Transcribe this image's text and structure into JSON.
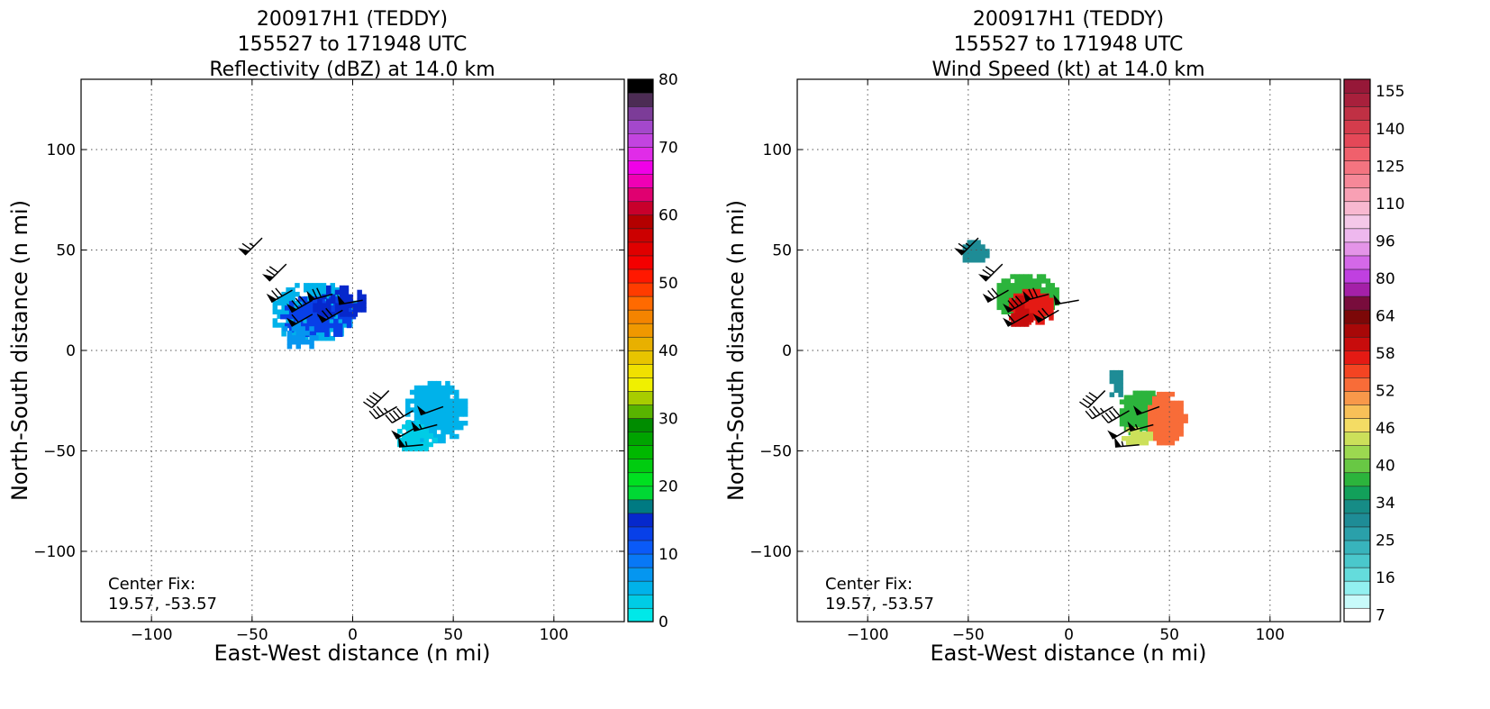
{
  "chart_data": [
    {
      "type": "heatmap",
      "title_lines": [
        "200917H1 (TEDDY)",
        "155527 to 171948 UTC",
        "Reflectivity (dBZ) at 14.0 km"
      ],
      "xlabel": "East-West distance (n mi)",
      "ylabel": "North-South distance (n mi)",
      "xlim": [
        -135,
        135
      ],
      "ylim": [
        -135,
        135
      ],
      "x_ticks": [
        -100,
        -50,
        0,
        50,
        100
      ],
      "y_ticks": [
        -100,
        -50,
        0,
        50,
        100
      ],
      "x_tick_labels": [
        "−100",
        "−50",
        "0",
        "50",
        "100"
      ],
      "y_tick_labels": [
        "−100",
        "−50",
        "0",
        "50",
        "100"
      ],
      "grid": true,
      "annotation_lines": [
        "Center Fix:",
        "19.57, -53.57"
      ],
      "colorbar": {
        "label_values": [
          0,
          10,
          20,
          30,
          40,
          50,
          60,
          70,
          80
        ],
        "labels": [
          "0",
          "10",
          "20",
          "30",
          "40",
          "50",
          "60",
          "70",
          "80"
        ],
        "colors": [
          "#00e8e8",
          "#00cce6",
          "#00b2ea",
          "#0596f0",
          "#0878f6",
          "#0a5af8",
          "#0840e8",
          "#0628cc",
          "#007a82",
          "#00d834",
          "#00e020",
          "#00cc10",
          "#00b800",
          "#00a400",
          "#008c00",
          "#58b400",
          "#a8cc00",
          "#f0f000",
          "#f0e000",
          "#e8c400",
          "#e8b000",
          "#f09800",
          "#f48400",
          "#ff6a00",
          "#ff3c00",
          "#ff1800",
          "#f40000",
          "#e00000",
          "#cc0000",
          "#b40000",
          "#c8002c",
          "#e00070",
          "#f000b4",
          "#f000e8",
          "#e02ce8",
          "#c244e0",
          "#a448cc",
          "#7c3c98",
          "#4c2c54",
          "#000000"
        ]
      },
      "fields": [
        {
          "level": 2,
          "x": -20,
          "y": 20,
          "rx": 22,
          "ry": 15,
          "density": 0.7
        },
        {
          "level": 2,
          "x": 40,
          "y": -30,
          "rx": 16,
          "ry": 16,
          "density": 0.8
        },
        {
          "level": 6,
          "x": -18,
          "y": 18,
          "rx": 18,
          "ry": 11,
          "density": 0.75
        },
        {
          "level": 7,
          "x": -8,
          "y": 25,
          "rx": 14,
          "ry": 8,
          "density": 0.6
        },
        {
          "level": 3,
          "x": -28,
          "y": 8,
          "rx": 9,
          "ry": 7,
          "density": 0.6
        },
        {
          "level": 1,
          "x": 30,
          "y": -42,
          "rx": 10,
          "ry": 8,
          "density": 0.6
        }
      ],
      "barbs": [
        {
          "x": -45,
          "y": 56,
          "dir": 225,
          "speed": 65
        },
        {
          "x": -33,
          "y": 43,
          "dir": 225,
          "speed": 70
        },
        {
          "x": -30,
          "y": 30,
          "dir": 240,
          "speed": 70
        },
        {
          "x": -20,
          "y": 25,
          "dir": 240,
          "speed": 80
        },
        {
          "x": -10,
          "y": 28,
          "dir": 255,
          "speed": 70
        },
        {
          "x": -20,
          "y": 18,
          "dir": 240,
          "speed": 60
        },
        {
          "x": -5,
          "y": 20,
          "dir": 240,
          "speed": 70
        },
        {
          "x": 5,
          "y": 25,
          "dir": 260,
          "speed": 50
        },
        {
          "x": 18,
          "y": -20,
          "dir": 225,
          "speed": 40
        },
        {
          "x": 22,
          "y": -28,
          "dir": 240,
          "speed": 35
        },
        {
          "x": 30,
          "y": -30,
          "dir": 240,
          "speed": 40
        },
        {
          "x": 32,
          "y": -38,
          "dir": 240,
          "speed": 50
        },
        {
          "x": 45,
          "y": -28,
          "dir": 250,
          "speed": 50
        },
        {
          "x": 42,
          "y": -37,
          "dir": 255,
          "speed": 55
        },
        {
          "x": 35,
          "y": -47,
          "dir": 265,
          "speed": 55
        }
      ]
    },
    {
      "type": "heatmap",
      "title_lines": [
        "200917H1 (TEDDY)",
        "155527 to 171948 UTC",
        "Wind Speed (kt) at 14.0 km"
      ],
      "xlabel": "East-West distance (n mi)",
      "ylabel": "North-South distance (n mi)",
      "xlim": [
        -135,
        135
      ],
      "ylim": [
        -135,
        135
      ],
      "x_ticks": [
        -100,
        -50,
        0,
        50,
        100
      ],
      "y_ticks": [
        -100,
        -50,
        0,
        50,
        100
      ],
      "x_tick_labels": [
        "−100",
        "−50",
        "0",
        "50",
        "100"
      ],
      "y_tick_labels": [
        "−100",
        "−50",
        "0",
        "50",
        "100"
      ],
      "grid": true,
      "annotation_lines": [
        "Center Fix:",
        "19.57, -53.57"
      ],
      "colorbar": {
        "label_positions": [
          0,
          2,
          4,
          6,
          8,
          10,
          12,
          14,
          16,
          18,
          20,
          22,
          24,
          26,
          28
        ],
        "labels": [
          "7",
          "16",
          "25",
          "34",
          "40",
          "46",
          "52",
          "58",
          "64",
          "80",
          "96",
          "110",
          "125",
          "140",
          "155"
        ],
        "colors": [
          "#ffffff",
          "#c8fafa",
          "#92f0f0",
          "#64dcdc",
          "#4ac8cc",
          "#38b4bc",
          "#2aa0aa",
          "#1e8c96",
          "#168c86",
          "#12a05a",
          "#2cb43c",
          "#68c844",
          "#9cd850",
          "#cce05a",
          "#f4dc64",
          "#f8c058",
          "#f8984a",
          "#f86c38",
          "#f44422",
          "#e41a14",
          "#c80c0c",
          "#a80808",
          "#7c0808",
          "#780c3c",
          "#a420a8",
          "#c040e0",
          "#d468e8",
          "#e494e8",
          "#eeb8ee",
          "#f4c8e8",
          "#f8b8d0",
          "#f8a0b4",
          "#f68898",
          "#f47480",
          "#f0606c",
          "#e44858",
          "#d43c4c",
          "#c03044",
          "#a8203c",
          "#961838"
        ]
      },
      "fields": [
        {
          "level": 10,
          "x": -22,
          "y": 28,
          "rx": 16,
          "ry": 12,
          "density": 0.8
        },
        {
          "level": 19,
          "x": -20,
          "y": 22,
          "rx": 12,
          "ry": 9,
          "density": 0.8
        },
        {
          "level": 20,
          "x": -25,
          "y": 20,
          "rx": 6,
          "ry": 8,
          "density": 0.7
        },
        {
          "level": 7,
          "x": -48,
          "y": 50,
          "rx": 7,
          "ry": 6,
          "density": 0.9
        },
        {
          "level": 10,
          "x": 35,
          "y": -30,
          "rx": 12,
          "ry": 12,
          "density": 0.8
        },
        {
          "level": 17,
          "x": 47,
          "y": -33,
          "rx": 10,
          "ry": 14,
          "density": 0.9
        },
        {
          "level": 7,
          "x": 22,
          "y": -15,
          "rx": 4,
          "ry": 8,
          "density": 0.7
        },
        {
          "level": 13,
          "x": 32,
          "y": -42,
          "rx": 8,
          "ry": 5,
          "density": 0.7
        }
      ],
      "barbs": [
        {
          "x": -45,
          "y": 56,
          "dir": 225,
          "speed": 65
        },
        {
          "x": -33,
          "y": 43,
          "dir": 225,
          "speed": 70
        },
        {
          "x": -30,
          "y": 30,
          "dir": 240,
          "speed": 70
        },
        {
          "x": -20,
          "y": 25,
          "dir": 240,
          "speed": 80
        },
        {
          "x": -10,
          "y": 28,
          "dir": 255,
          "speed": 70
        },
        {
          "x": -20,
          "y": 18,
          "dir": 240,
          "speed": 60
        },
        {
          "x": -5,
          "y": 20,
          "dir": 240,
          "speed": 70
        },
        {
          "x": 5,
          "y": 25,
          "dir": 260,
          "speed": 50
        },
        {
          "x": 18,
          "y": -20,
          "dir": 225,
          "speed": 40
        },
        {
          "x": 22,
          "y": -28,
          "dir": 240,
          "speed": 35
        },
        {
          "x": 30,
          "y": -30,
          "dir": 240,
          "speed": 40
        },
        {
          "x": 32,
          "y": -38,
          "dir": 240,
          "speed": 50
        },
        {
          "x": 45,
          "y": -28,
          "dir": 250,
          "speed": 50
        },
        {
          "x": 42,
          "y": -37,
          "dir": 255,
          "speed": 55
        },
        {
          "x": 35,
          "y": -47,
          "dir": 265,
          "speed": 55
        }
      ]
    }
  ]
}
